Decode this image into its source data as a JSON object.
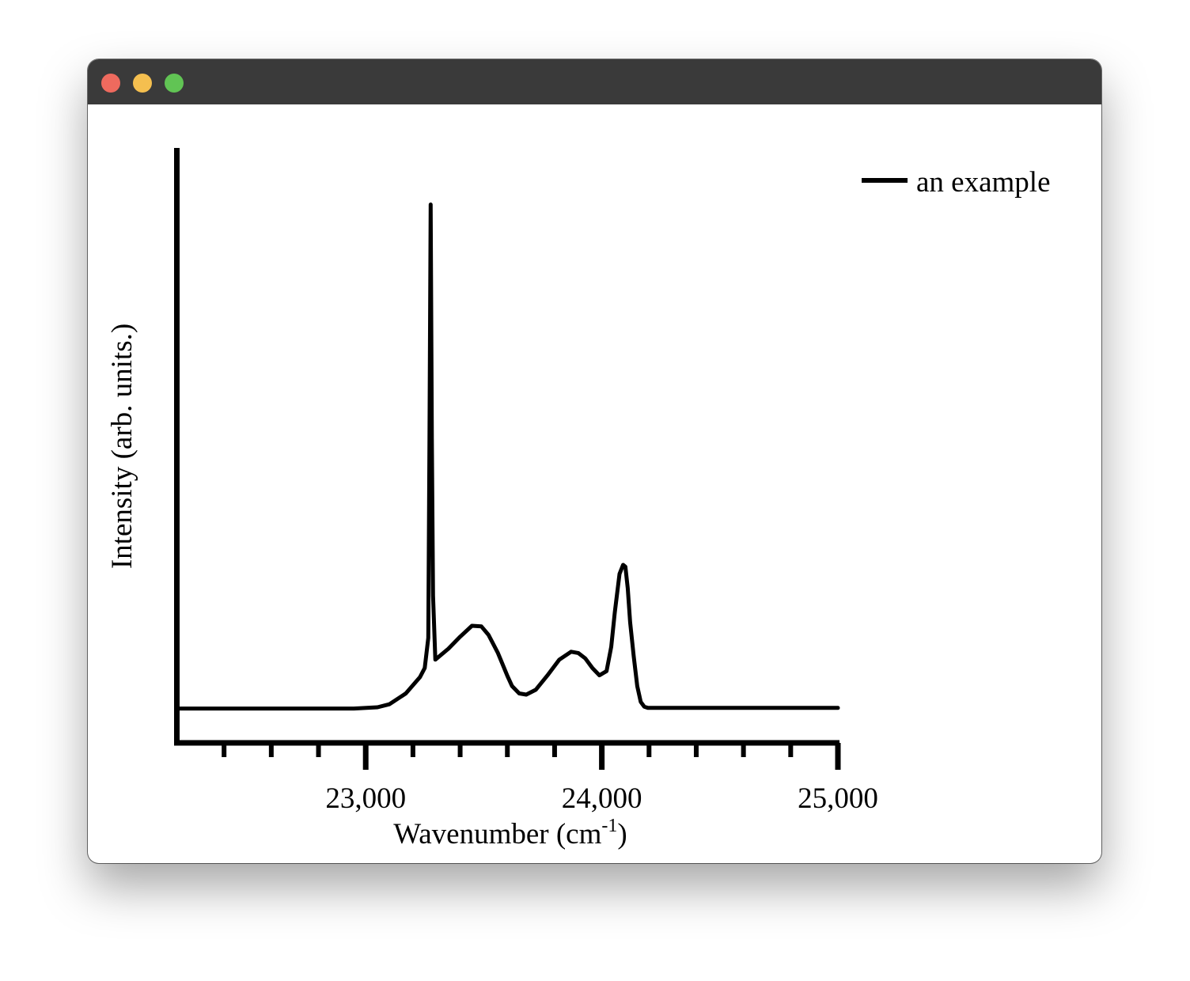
{
  "window": {
    "controls": {
      "close_color": "#ee6a5e",
      "minimize_color": "#f5bf4f",
      "maximize_color": "#61c454"
    },
    "titlebar_color": "#3a3a3a"
  },
  "chart_data": {
    "type": "line",
    "title": "",
    "xlabel_main": "Wavenumber (cm",
    "xlabel_sup": "-1",
    "xlabel_close": ")",
    "ylabel": "Intensity (arb. units.)",
    "xlim": [
      22200,
      25000
    ],
    "ylim": [
      0,
      1.0
    ],
    "x_ticks_major": [
      23000,
      24000,
      25000
    ],
    "x_tick_labels": [
      "23,000",
      "24,000",
      "25,000"
    ],
    "x_ticks_minor": [
      22400,
      22600,
      22800,
      23200,
      23400,
      23600,
      23800,
      24200,
      24400,
      24600,
      24800
    ],
    "grid": false,
    "legend_position": "top-right",
    "series": [
      {
        "name": "an example",
        "color": "#000000",
        "x": [
          22200,
          22950,
          23050,
          23100,
          23170,
          23230,
          23250,
          23265,
          23270,
          23275,
          23280,
          23285,
          23295,
          23350,
          23400,
          23450,
          23490,
          23520,
          23560,
          23600,
          23620,
          23650,
          23680,
          23720,
          23770,
          23820,
          23870,
          23900,
          23930,
          23960,
          23990,
          24020,
          24040,
          24055,
          24075,
          24090,
          24100,
          24110,
          24120,
          24135,
          24150,
          24165,
          24180,
          24195,
          24210,
          25000
        ],
        "y": [
          0.053,
          0.053,
          0.055,
          0.06,
          0.078,
          0.105,
          0.12,
          0.17,
          0.5,
          0.888,
          0.5,
          0.24,
          0.134,
          0.152,
          0.172,
          0.19,
          0.189,
          0.175,
          0.145,
          0.107,
          0.09,
          0.078,
          0.076,
          0.084,
          0.108,
          0.134,
          0.147,
          0.145,
          0.136,
          0.12,
          0.108,
          0.115,
          0.155,
          0.212,
          0.276,
          0.291,
          0.288,
          0.252,
          0.196,
          0.14,
          0.09,
          0.064,
          0.056,
          0.054,
          0.054,
          0.054
        ]
      }
    ]
  }
}
